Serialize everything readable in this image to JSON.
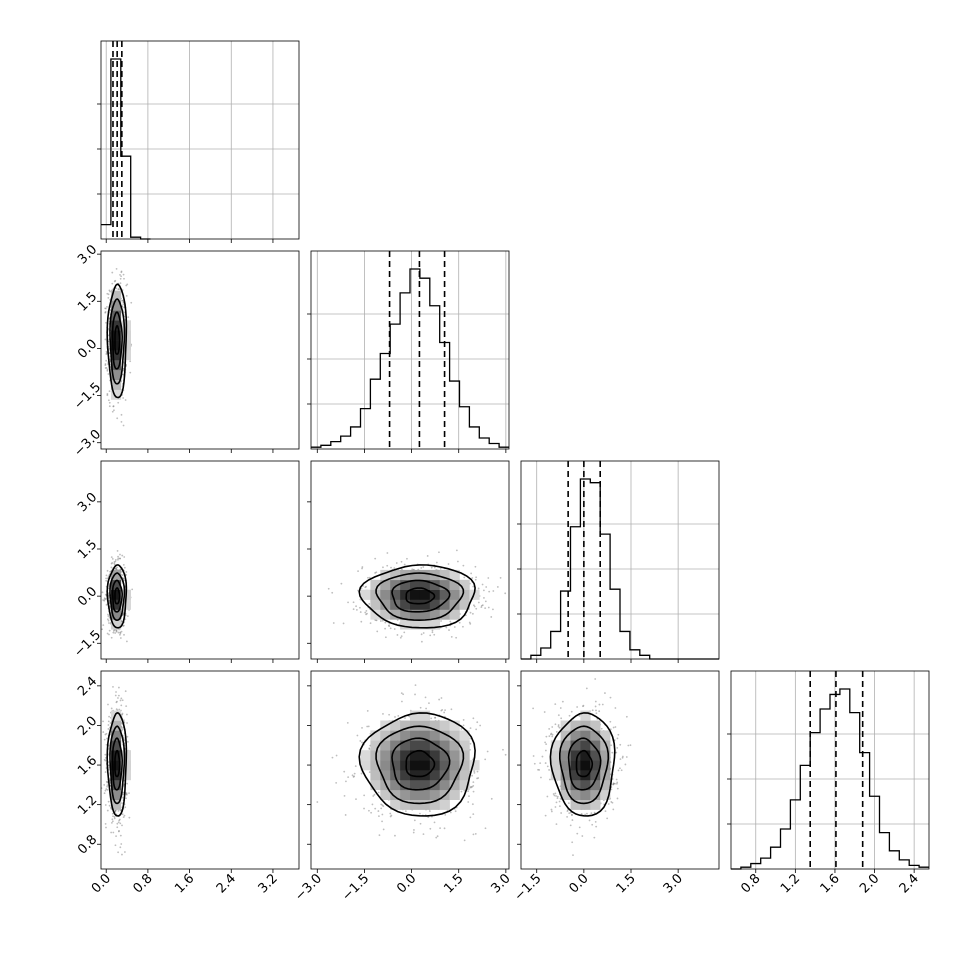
{
  "chart_data": {
    "type": "corner",
    "style": {
      "grid": true,
      "axis_color": "#000000",
      "grid_color": "#b0b0b0",
      "point_color": "#6e6e6e",
      "density_colors": [
        "#ffffff",
        "#d9d9d9",
        "#a6a6a6",
        "#6d6d6d",
        "#3a3a3a",
        "#000000"
      ]
    },
    "parameters": [
      {
        "index": 0,
        "range": [
          -0.1,
          3.7
        ],
        "ticks": [
          0.0,
          0.8,
          1.6,
          2.4,
          3.2
        ],
        "tick_labels": [
          "0.0",
          "0.8",
          "1.6",
          "2.4",
          "3.2"
        ],
        "median": 0.21,
        "quantile_16": 0.13,
        "quantile_84": 0.3,
        "sigma": 0.09,
        "hist_bin_edges": [
          -0.1,
          0.09,
          0.28,
          0.47,
          0.66,
          0.85
        ],
        "hist_counts": [
          0.08,
          1.0,
          0.46,
          0.01,
          0.0
        ]
      },
      {
        "index": 1,
        "range": [
          -3.2,
          3.1
        ],
        "ticks": [
          -3.0,
          -1.5,
          0.0,
          1.5,
          3.0
        ],
        "tick_labels": [
          "−3.0",
          "−1.5",
          "0.0",
          "1.5",
          "3.0"
        ],
        "median": 0.25,
        "quantile_16": -0.7,
        "quantile_84": 1.05,
        "sigma": 0.9,
        "hist_bin_edges": [
          -3.2,
          -2.885,
          -2.57,
          -2.255,
          -1.94,
          -1.625,
          -1.31,
          -0.995,
          -0.68,
          -0.365,
          -0.05,
          0.265,
          0.58,
          0.895,
          1.21,
          1.525,
          1.84,
          2.155,
          2.47,
          2.785,
          3.1
        ],
        "hist_counts": [
          0.01,
          0.02,
          0.04,
          0.07,
          0.12,
          0.22,
          0.38,
          0.52,
          0.68,
          0.85,
          0.98,
          0.93,
          0.78,
          0.58,
          0.37,
          0.23,
          0.12,
          0.06,
          0.03,
          0.01
        ]
      },
      {
        "index": 2,
        "range": [
          -2.0,
          4.3
        ],
        "ticks": [
          -1.5,
          0.0,
          1.5,
          3.0
        ],
        "tick_labels": [
          "−1.5",
          "0.0",
          "1.5",
          "3.0"
        ],
        "median": 0.0,
        "quantile_16": -0.5,
        "quantile_84": 0.52,
        "sigma": 0.5,
        "hist_bin_edges": [
          -2.0,
          -1.685,
          -1.37,
          -1.055,
          -0.74,
          -0.425,
          -0.11,
          0.205,
          0.52,
          0.835,
          1.15,
          1.465,
          1.78,
          2.095,
          2.41,
          2.725,
          3.04,
          3.355,
          3.67,
          3.985,
          4.3
        ],
        "hist_counts": [
          0.0,
          0.02,
          0.06,
          0.15,
          0.37,
          0.72,
          0.98,
          0.96,
          0.68,
          0.38,
          0.15,
          0.05,
          0.02,
          0.0,
          0.0,
          0.0,
          0.0,
          0.0,
          0.0,
          0.0
        ]
      },
      {
        "index": 3,
        "range": [
          0.55,
          2.55
        ],
        "ticks": [
          0.8,
          1.2,
          1.6,
          2.0,
          2.4
        ],
        "tick_labels": [
          "0.8",
          "1.2",
          "1.6",
          "2.0",
          "2.4"
        ],
        "median": 1.61,
        "quantile_16": 1.35,
        "quantile_84": 1.88,
        "sigma": 0.26,
        "hist_bin_edges": [
          0.55,
          0.65,
          0.75,
          0.85,
          0.95,
          1.05,
          1.15,
          1.25,
          1.35,
          1.45,
          1.55,
          1.65,
          1.75,
          1.85,
          1.95,
          2.05,
          2.15,
          2.25,
          2.35,
          2.45,
          2.55
        ],
        "hist_counts": [
          0.0,
          0.01,
          0.03,
          0.06,
          0.12,
          0.22,
          0.38,
          0.57,
          0.75,
          0.88,
          0.96,
          0.99,
          0.86,
          0.64,
          0.4,
          0.2,
          0.1,
          0.05,
          0.02,
          0.01
        ]
      }
    ],
    "panels_2d": [
      {
        "x": 0,
        "y": 1
      },
      {
        "x": 0,
        "y": 2
      },
      {
        "x": 1,
        "y": 2
      },
      {
        "x": 0,
        "y": 3
      },
      {
        "x": 1,
        "y": 3
      },
      {
        "x": 2,
        "y": 3
      }
    ],
    "contour_sigma_levels": [
      0.5,
      1.0,
      1.5,
      2.0
    ]
  }
}
